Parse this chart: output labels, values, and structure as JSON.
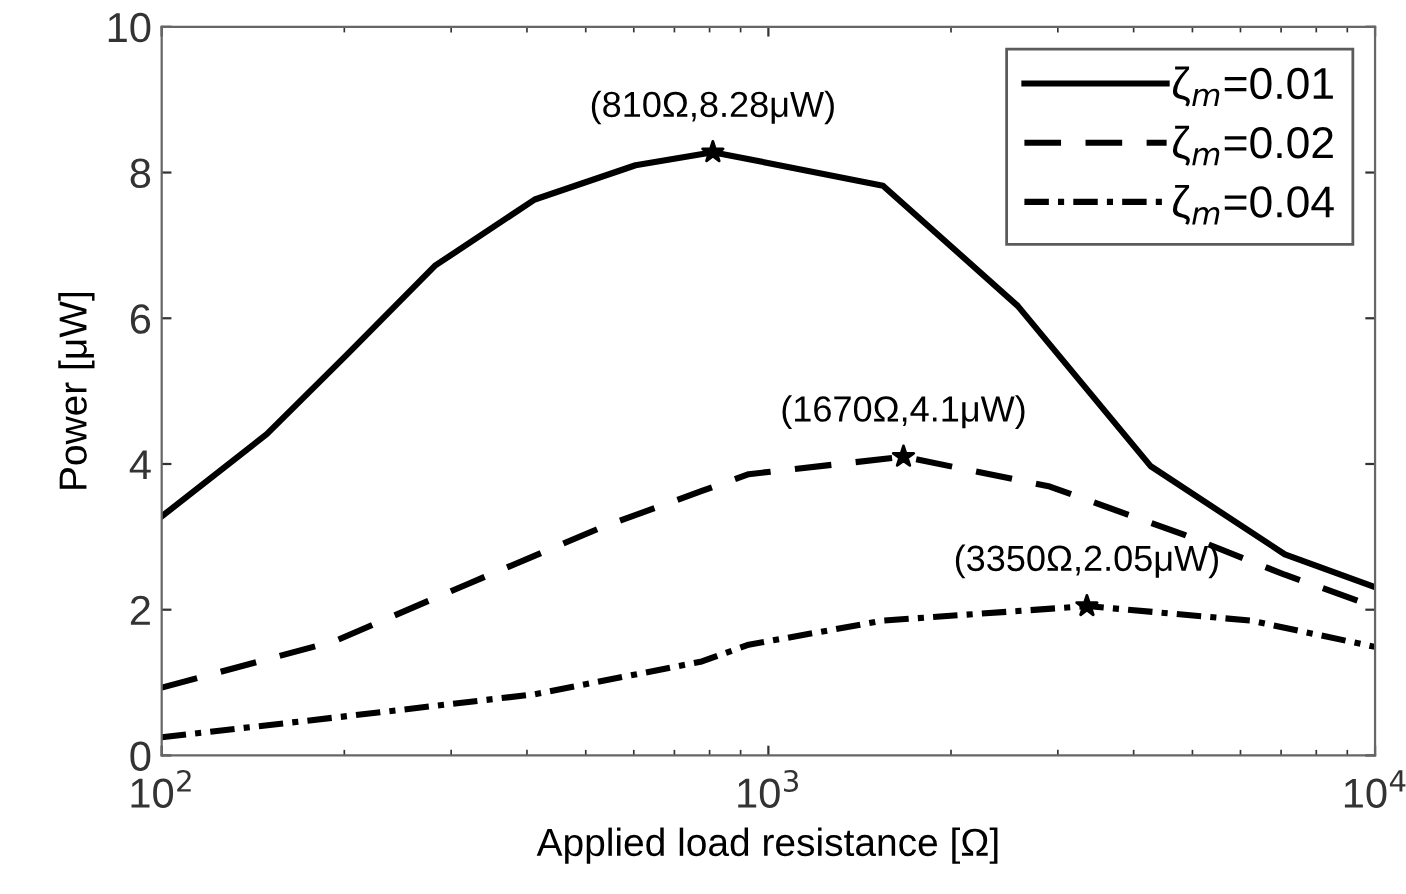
{
  "chart_data": {
    "type": "line",
    "xlabel": "Applied load resistance [Ω]",
    "ylabel": "Power [μW]",
    "log": "x",
    "xlim": [
      100,
      10000
    ],
    "ylim": [
      0,
      10
    ],
    "xticks": [
      {
        "value": 100,
        "label": "10$^{2}$"
      },
      {
        "value": 1000,
        "label": "10$^{3}$"
      },
      {
        "value": 10000,
        "label": "10$^{4}$"
      }
    ],
    "yticks": [
      0,
      2,
      4,
      6,
      8,
      10
    ],
    "grid": false,
    "legend": "top right",
    "series": [
      {
        "name": "ζ$_{m}$=0.01",
        "color": "#000000",
        "line_style": "solid",
        "x": [
          100,
          149,
          202,
          282,
          412,
          604,
          810,
          1545,
          2576,
          4266,
          7100,
          10000
        ],
        "values": [
          3.28,
          4.41,
          5.5,
          6.72,
          7.63,
          8.1,
          8.28,
          7.82,
          6.17,
          3.97,
          2.76,
          2.31
        ]
      },
      {
        "name": "ζ$_{m}$=0.02",
        "color": "#000000",
        "line_style": "dashed",
        "x": [
          100,
          193,
          319,
          531,
          777,
          928,
          1670,
          2910,
          4840,
          7100,
          10000
        ],
        "values": [
          0.93,
          1.57,
          2.35,
          3.13,
          3.63,
          3.86,
          4.1,
          3.69,
          3.03,
          2.48,
          2.04
        ]
      },
      {
        "name": "ζ$_{m}$=0.04",
        "color": "#000000",
        "line_style": "dashdot",
        "x": [
          100,
          193,
          412,
          777,
          928,
          1545,
          3350,
          6240,
          10000
        ],
        "values": [
          0.25,
          0.52,
          0.84,
          1.29,
          1.52,
          1.85,
          2.05,
          1.85,
          1.49
        ]
      },
      {
        "type": "scatter",
        "color": "#000000",
        "marker": "star",
        "x": [
          810,
          1670,
          3350
        ],
        "values": [
          8.28,
          4.1,
          2.05
        ]
      }
    ],
    "annotations": [
      {
        "text": "(810Ω,8.28μW)",
        "x": 810,
        "y": 8.28
      },
      {
        "text": "(1670Ω,4.1μW)",
        "x": 1670,
        "y": 4.1
      },
      {
        "text": "(3350Ω,2.05μW)",
        "x": 3350,
        "y": 2.05
      }
    ]
  }
}
